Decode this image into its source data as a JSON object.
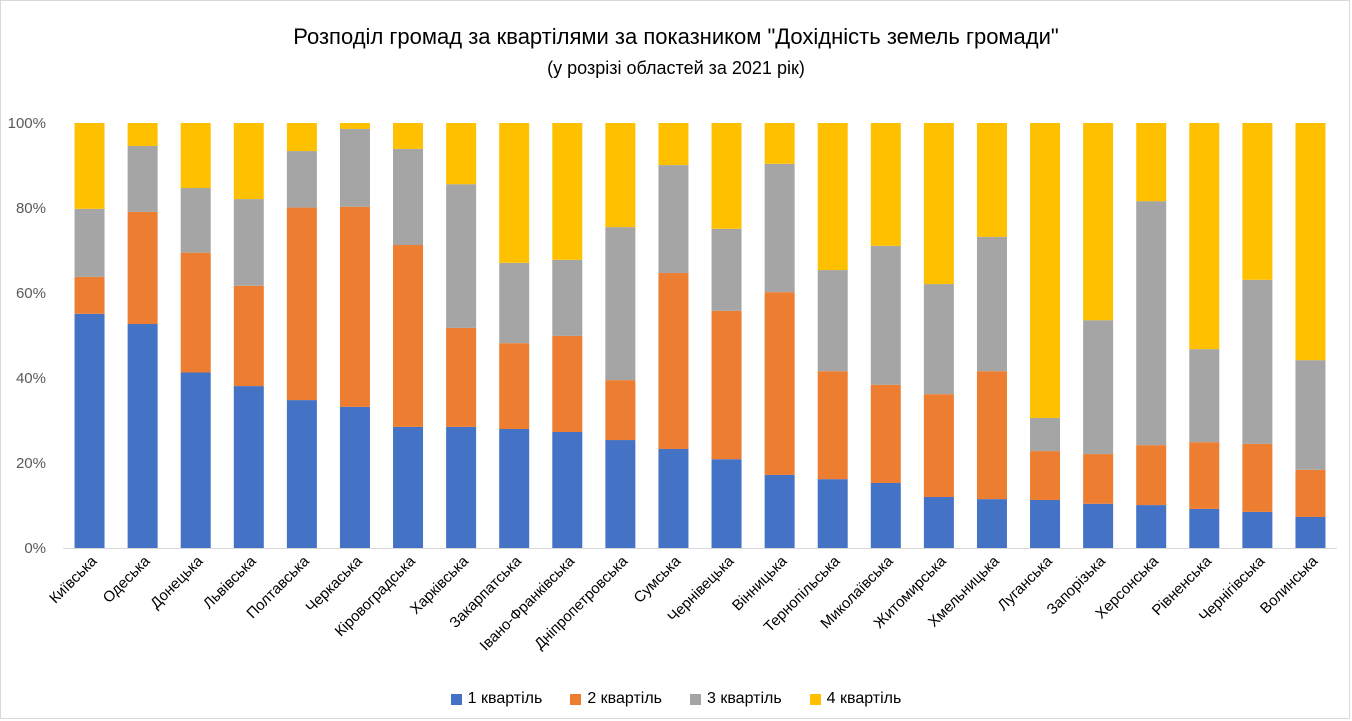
{
  "chart_data": {
    "type": "bar",
    "stacked": true,
    "percent_stacked": true,
    "title": "Розподіл громад за квартілями за показником \"Дохідність земель громади\"",
    "subtitle": "(у розрізі областей за 2021 рік)",
    "xlabel": "",
    "ylabel": "",
    "ylim": [
      0,
      100
    ],
    "yticks": [
      "0%",
      "20%",
      "40%",
      "60%",
      "80%",
      "100%"
    ],
    "ytick_values": [
      0,
      20,
      40,
      60,
      80,
      100
    ],
    "grid": false,
    "legend_position": "bottom",
    "categories": [
      "Київська",
      "Одеська",
      "Донецька",
      "Львівська",
      "Полтавська",
      "Черкаська",
      "Кіровоградська",
      "Харківська",
      "Закарпатська",
      "Івано-Франківська",
      "Дніпропетровська",
      "Сумська",
      "Чернівецька",
      "Вінницька",
      "Тернопільська",
      "Миколаївська",
      "Житомирська",
      "Хмельницька",
      "Луганська",
      "Запорізька",
      "Херсонська",
      "Рівненська",
      "Чернігівська",
      "Волинська"
    ],
    "series": [
      {
        "name": "1 квартіль",
        "color": "#4472c4",
        "values": [
          55.1,
          52.7,
          41.3,
          38.1,
          34.8,
          33.2,
          28.5,
          28.5,
          28.0,
          27.3,
          25.4,
          23.3,
          20.9,
          17.2,
          16.2,
          15.3,
          12.0,
          11.5,
          11.3,
          10.4,
          10.1,
          9.2,
          8.5,
          7.3
        ]
      },
      {
        "name": "2 квартіль",
        "color": "#ed7d31",
        "values": [
          8.7,
          26.4,
          28.2,
          23.6,
          45.3,
          47.1,
          42.8,
          23.3,
          20.2,
          22.6,
          14.1,
          41.4,
          34.9,
          43.0,
          25.4,
          23.1,
          24.2,
          30.1,
          11.5,
          11.7,
          14.1,
          15.7,
          16.0,
          11.1
        ]
      },
      {
        "name": "3 квартіль",
        "color": "#a5a5a5",
        "values": [
          16.0,
          15.5,
          15.2,
          20.4,
          13.3,
          18.3,
          22.6,
          33.8,
          18.9,
          17.9,
          36.0,
          25.4,
          19.3,
          30.2,
          23.8,
          32.7,
          25.9,
          31.6,
          7.8,
          31.5,
          57.4,
          21.9,
          38.6,
          25.8
        ]
      },
      {
        "name": "4 квартіль",
        "color": "#ffc000",
        "values": [
          20.2,
          5.4,
          15.3,
          17.9,
          6.6,
          1.4,
          6.1,
          14.4,
          32.9,
          32.2,
          24.5,
          9.9,
          24.9,
          9.6,
          34.6,
          28.9,
          37.9,
          26.8,
          69.4,
          46.4,
          18.4,
          53.2,
          36.9,
          55.8
        ]
      }
    ]
  }
}
